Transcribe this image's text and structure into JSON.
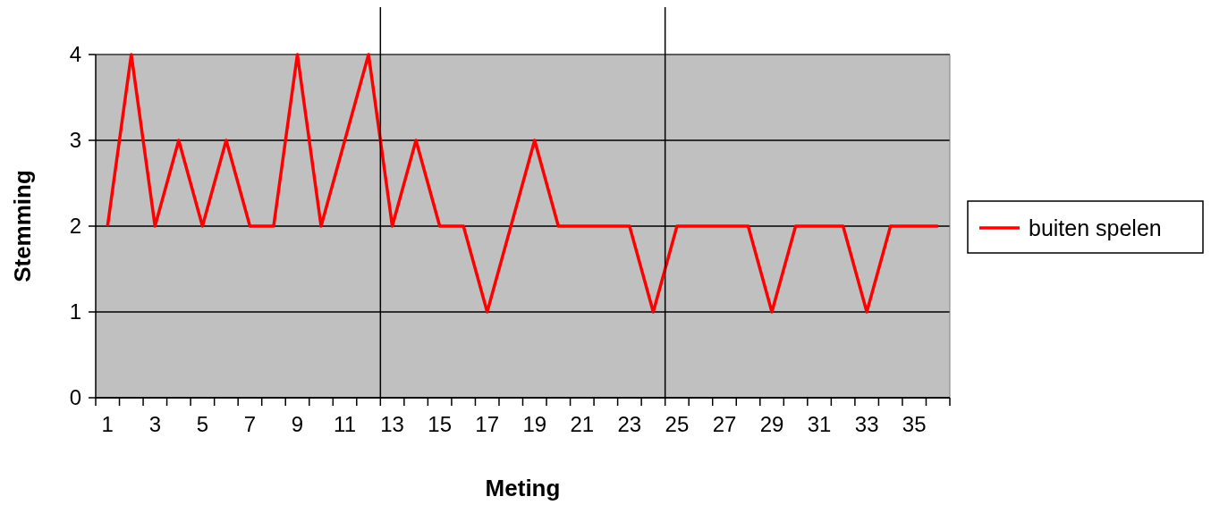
{
  "chart_data": {
    "type": "line",
    "xlabel": "Meting",
    "ylabel": "Stemming",
    "x": [
      1,
      2,
      3,
      4,
      5,
      6,
      7,
      8,
      9,
      10,
      11,
      12,
      13,
      14,
      15,
      16,
      17,
      18,
      19,
      20,
      21,
      22,
      23,
      24,
      25,
      26,
      27,
      28,
      29,
      30,
      31,
      32,
      33,
      34,
      35,
      36
    ],
    "series": [
      {
        "name": "buiten spelen",
        "color": "#ff0000",
        "values": [
          2,
          4,
          2,
          3,
          2,
          3,
          2,
          2,
          4,
          2,
          3,
          4,
          2,
          3,
          2,
          2,
          1,
          2,
          3,
          2,
          2,
          2,
          2,
          1,
          2,
          2,
          2,
          2,
          1,
          2,
          2,
          2,
          1,
          2,
          2,
          2
        ]
      }
    ],
    "xlim": [
      0.5,
      36.5
    ],
    "xticks": [
      1,
      3,
      5,
      7,
      9,
      11,
      13,
      15,
      17,
      19,
      21,
      23,
      25,
      27,
      29,
      31,
      33,
      35,
      {
        "value": 0.5,
        "label": null
      },
      {
        "value": 1.5,
        "label": null
      },
      {
        "value": 2.5,
        "label": null
      },
      {
        "value": 3.5,
        "label": null
      },
      {
        "value": 4.5,
        "label": null
      },
      {
        "value": 5.5,
        "label": null
      },
      {
        "value": 6.5,
        "label": null
      },
      {
        "value": 7.5,
        "label": null
      },
      {
        "value": 8.5,
        "label": null
      },
      {
        "value": 9.5,
        "label": null
      },
      {
        "value": 10.5,
        "label": null
      },
      {
        "value": 11.5,
        "label": null
      },
      {
        "value": 12.5,
        "label": null
      },
      {
        "value": 13.5,
        "label": null
      },
      {
        "value": 14.5,
        "label": null
      },
      {
        "value": 15.5,
        "label": null
      },
      {
        "value": 16.5,
        "label": null
      },
      {
        "value": 17.5,
        "label": null
      },
      {
        "value": 18.5,
        "label": null
      },
      {
        "value": 19.5,
        "label": null
      },
      {
        "value": 20.5,
        "label": null
      },
      {
        "value": 21.5,
        "label": null
      },
      {
        "value": 22.5,
        "label": null
      },
      {
        "value": 23.5,
        "label": null
      },
      {
        "value": 24.5,
        "label": null
      },
      {
        "value": 25.5,
        "label": null
      },
      {
        "value": 26.5,
        "label": null
      },
      {
        "value": 27.5,
        "label": null
      },
      {
        "value": 28.5,
        "label": null
      },
      {
        "value": 29.5,
        "label": null
      },
      {
        "value": 30.5,
        "label": null
      },
      {
        "value": 31.5,
        "label": null
      },
      {
        "value": 32.5,
        "label": null
      },
      {
        "value": 33.5,
        "label": null
      },
      {
        "value": 34.5,
        "label": null
      },
      {
        "value": 35.5,
        "label": null
      },
      {
        "value": 36.5,
        "label": null
      }
    ],
    "ylim": [
      0,
      4
    ],
    "yticks": [
      0,
      1,
      2,
      3,
      4
    ],
    "grid": "y",
    "legend": "right",
    "marker": "none",
    "line_style": "solid",
    "ref_lines": [
      {
        "axis": "x",
        "value": 12.5,
        "color": "#000000"
      },
      {
        "axis": "x",
        "value": 24.5,
        "color": "#000000"
      }
    ]
  }
}
